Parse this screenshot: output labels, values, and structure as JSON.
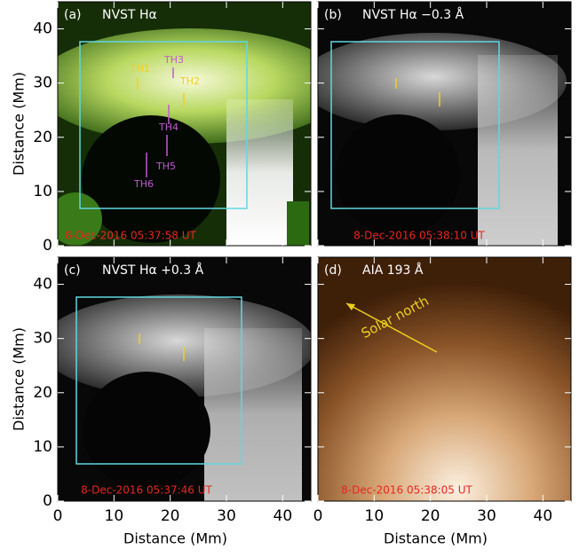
{
  "figure": {
    "panels": [
      {
        "label": "(a)",
        "title": "NVST Hα",
        "timestamp": "8-Dec-2016 05:37:58 UT",
        "annotations": [
          "TH1",
          "TH3",
          "TH2",
          "TH4",
          "TH5",
          "TH6"
        ]
      },
      {
        "label": "(b)",
        "title": "NVST Hα −0.3 Å",
        "timestamp": "8-Dec-2016 05:38:10 UT"
      },
      {
        "label": "(c)",
        "title": "NVST Hα +0.3 Å",
        "timestamp": "8-Dec-2016 05:37:46 UT"
      },
      {
        "label": "(d)",
        "title": "AIA 193 Å",
        "timestamp": "8-Dec-2016 05:38:05 UT",
        "annotations": [
          "Solar north"
        ]
      }
    ],
    "xlabel": "Distance (Mm)",
    "ylabel": "Distance (Mm)",
    "xlim": [
      0,
      45
    ],
    "ylim": [
      0,
      45
    ],
    "xticks": [
      0,
      10,
      20,
      30,
      40
    ],
    "yticks": [
      0,
      10,
      20,
      30,
      40
    ]
  }
}
